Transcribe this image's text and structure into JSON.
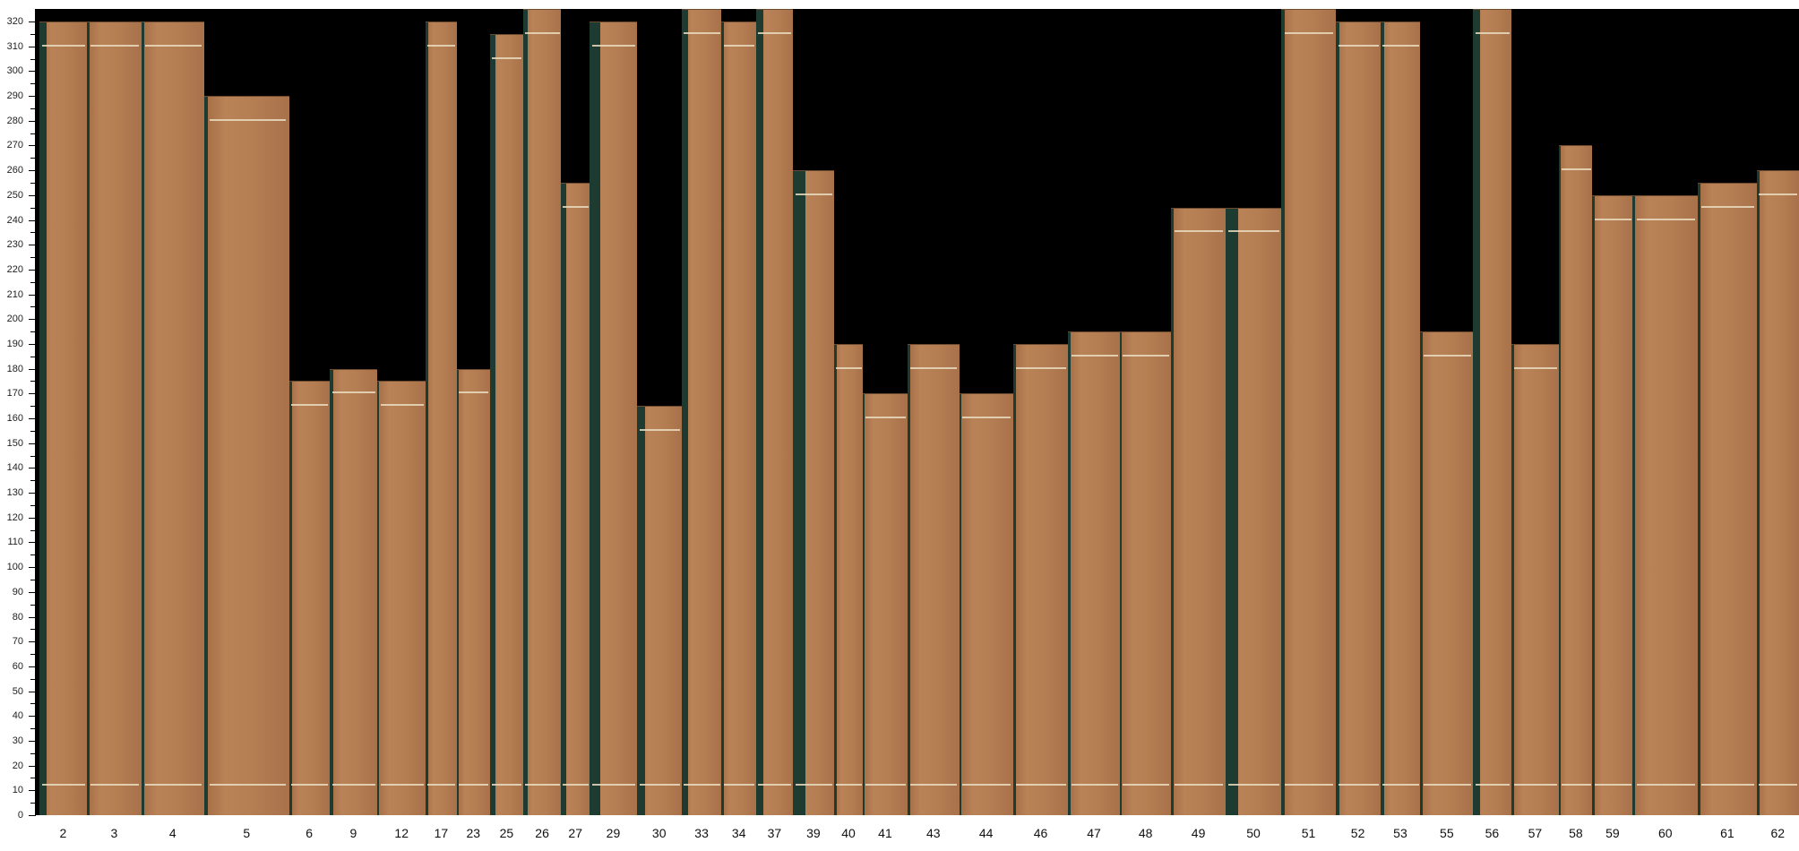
{
  "chart_data": {
    "type": "bar",
    "title": "",
    "xlabel": "",
    "ylabel": "",
    "ylim": [
      0,
      325
    ],
    "yticks_major_step": 10,
    "yticks_minor_step": 5,
    "grid": false,
    "categories": [
      "2",
      "3",
      "4",
      "5",
      "6",
      "9",
      "12",
      "17",
      "23",
      "25",
      "26",
      "27",
      "29",
      "30",
      "33",
      "34",
      "37",
      "39",
      "40",
      "41",
      "43",
      "44",
      "46",
      "47",
      "48",
      "49",
      "50",
      "51",
      "52",
      "53",
      "55",
      "56",
      "57",
      "58",
      "59",
      "60",
      "61",
      "62"
    ],
    "values": [
      320,
      320,
      320,
      290,
      175,
      180,
      175,
      320,
      180,
      315,
      325,
      255,
      320,
      165,
      325,
      320,
      325,
      260,
      190,
      170,
      190,
      170,
      190,
      195,
      195,
      245,
      245,
      325,
      320,
      320,
      195,
      325,
      190,
      270,
      250,
      250,
      255,
      260
    ],
    "colors": {
      "background": "#000000",
      "wood": "#b47d52",
      "gap": "#1d3b30",
      "chalk": "#e9dcc0"
    }
  }
}
